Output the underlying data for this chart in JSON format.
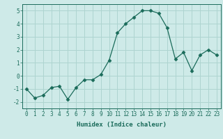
{
  "x": [
    0,
    1,
    2,
    3,
    4,
    5,
    6,
    7,
    8,
    9,
    10,
    11,
    12,
    13,
    14,
    15,
    16,
    17,
    18,
    19,
    20,
    21,
    22,
    23
  ],
  "y": [
    -1.0,
    -1.7,
    -1.5,
    -0.9,
    -0.8,
    -1.8,
    -0.9,
    -0.3,
    -0.3,
    0.1,
    1.2,
    3.3,
    4.0,
    4.5,
    5.0,
    5.0,
    4.8,
    3.7,
    1.3,
    1.8,
    0.4,
    1.6,
    2.0,
    1.6
  ],
  "line_color": "#1a6b5a",
  "marker": "D",
  "marker_size": 2.5,
  "bg_color": "#ceeae8",
  "grid_color": "#aed4d0",
  "xlabel": "Humidex (Indice chaleur)",
  "ylabel": "",
  "xlim": [
    -0.5,
    23.5
  ],
  "ylim": [
    -2.5,
    5.5
  ],
  "yticks": [
    -2,
    -1,
    0,
    1,
    2,
    3,
    4,
    5
  ],
  "xticks": [
    0,
    1,
    2,
    3,
    4,
    5,
    6,
    7,
    8,
    9,
    10,
    11,
    12,
    13,
    14,
    15,
    16,
    17,
    18,
    19,
    20,
    21,
    22,
    23
  ],
  "tick_fontsize": 5.5,
  "label_fontsize": 6.5
}
